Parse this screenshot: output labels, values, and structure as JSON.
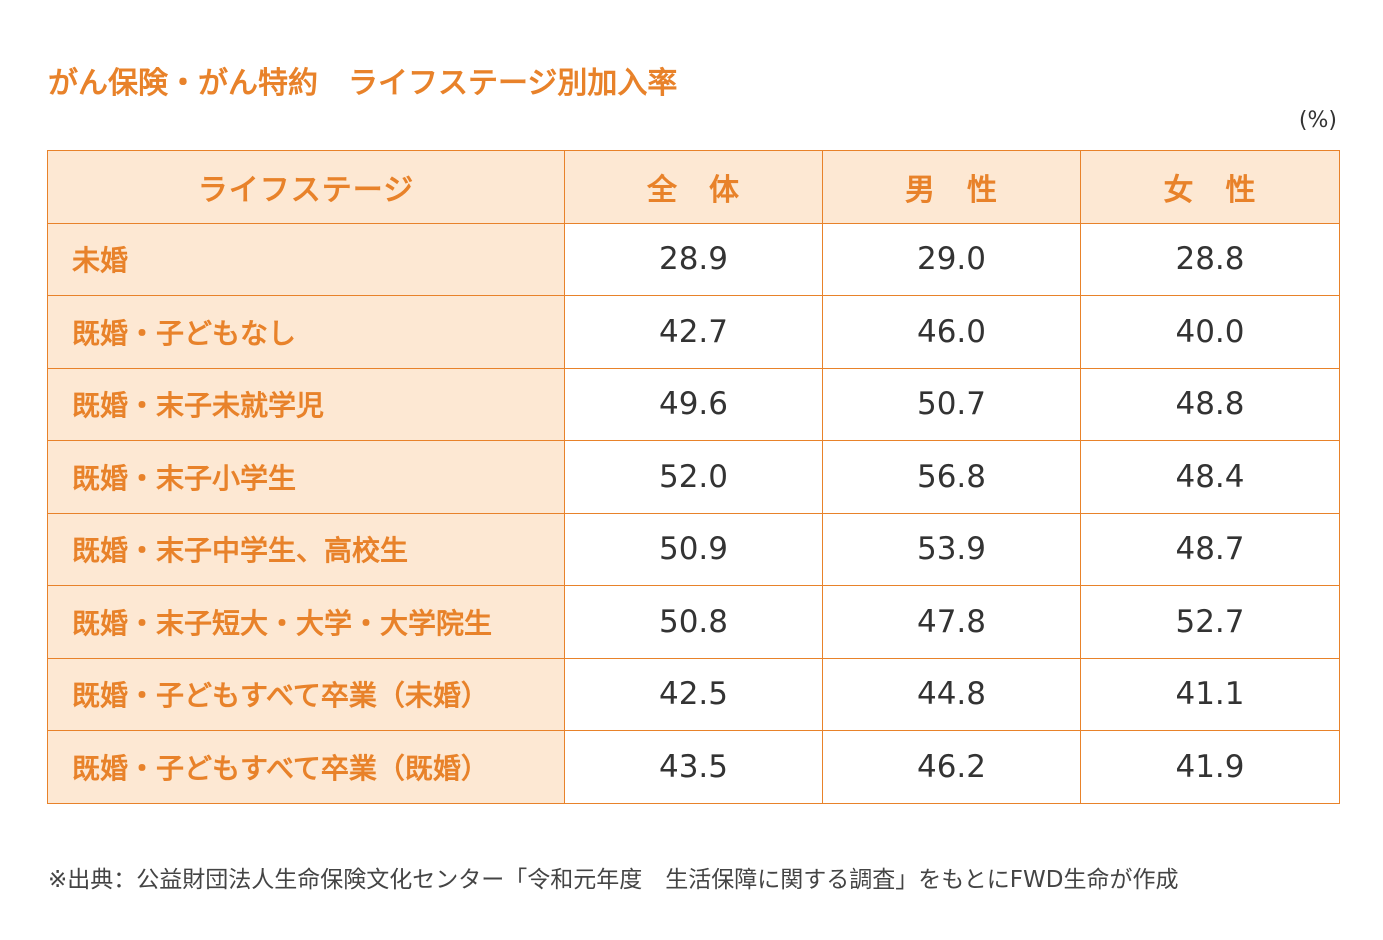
{
  "title": "がん保険・がん特約　ライフステージ別加入率",
  "unit": "(%)",
  "table": {
    "headers": [
      "ライフステージ",
      "全　体",
      "男　性",
      "女　性"
    ],
    "rows": [
      {
        "stage": "未婚",
        "total": "28.9",
        "male": "29.0",
        "female": "28.8"
      },
      {
        "stage": "既婚・子どもなし",
        "total": "42.7",
        "male": "46.0",
        "female": "40.0"
      },
      {
        "stage": "既婚・末子未就学児",
        "total": "49.6",
        "male": "50.7",
        "female": "48.8"
      },
      {
        "stage": "既婚・末子小学生",
        "total": "52.0",
        "male": "56.8",
        "female": "48.4"
      },
      {
        "stage": "既婚・末子中学生、高校生",
        "total": "50.9",
        "male": "53.9",
        "female": "48.7"
      },
      {
        "stage": "既婚・末子短大・大学・大学院生",
        "total": "50.8",
        "male": "47.8",
        "female": "52.7"
      },
      {
        "stage": "既婚・子どもすべて卒業（未婚）",
        "total": "42.5",
        "male": "44.8",
        "female": "41.1"
      },
      {
        "stage": "既婚・子どもすべて卒業（既婚）",
        "total": "43.5",
        "male": "46.2",
        "female": "41.9"
      }
    ]
  },
  "source": "※出典：公益財団法人生命保険文化センター「令和元年度　生活保障に関する調査」をもとにFWD生命が作成",
  "colors": {
    "accent": "#e8822a",
    "header_bg": "#fde8d3",
    "text": "#333333"
  }
}
